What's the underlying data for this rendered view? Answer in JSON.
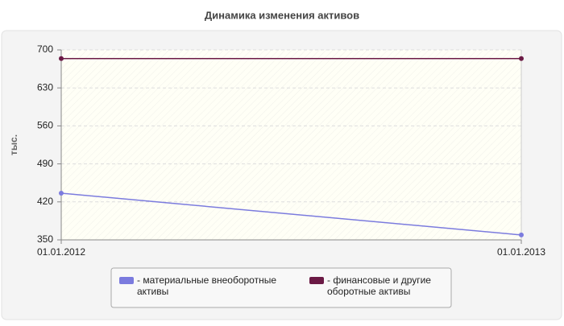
{
  "chart_data": {
    "type": "line",
    "title": "Динамика изменения активов",
    "y_label": "тыс.",
    "categories": [
      "01.01.2012",
      "01.01.2013"
    ],
    "series": [
      {
        "name": "- материальные внеоборотные активы",
        "color": "#7b7bde",
        "values": [
          436,
          359
        ]
      },
      {
        "name": "- финансовые и другие оборотные активы",
        "color": "#6b1a45",
        "values": [
          684,
          684
        ]
      }
    ],
    "ylim": [
      350,
      700
    ],
    "yticks": [
      350,
      420,
      490,
      560,
      630,
      700
    ],
    "grid": true
  }
}
